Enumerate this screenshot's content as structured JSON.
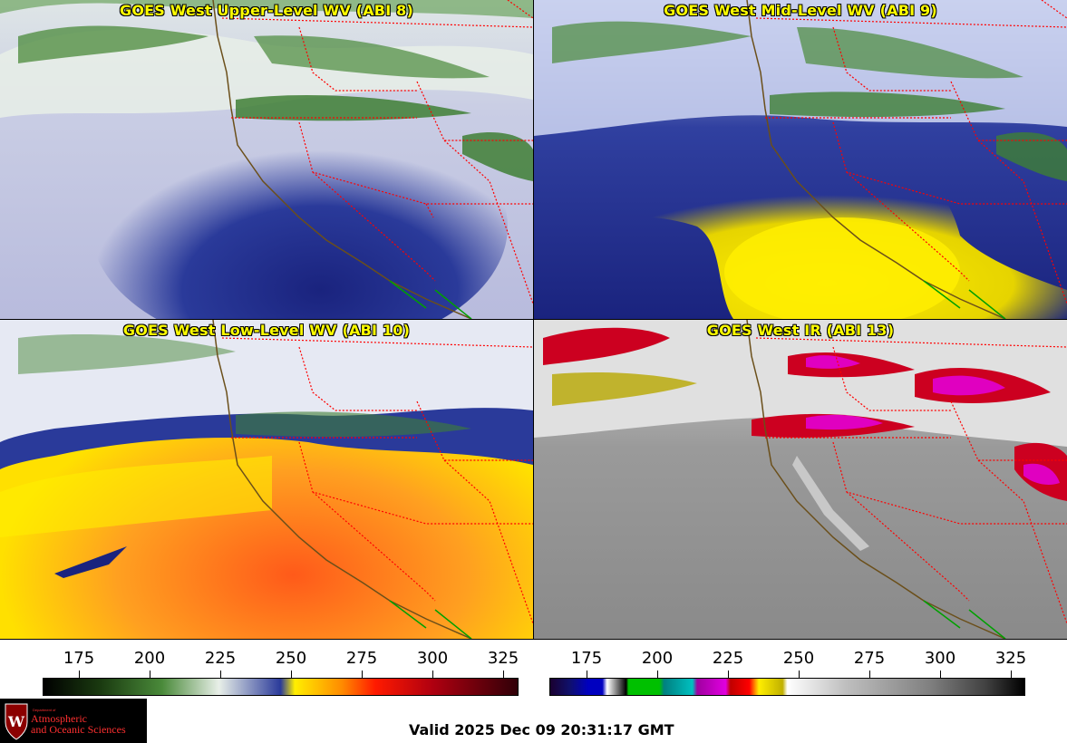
{
  "panels": [
    {
      "title": "GOES West Upper-Level WV (ABI 8)"
    },
    {
      "title": "GOES West Mid-Level WV (ABI 9)"
    },
    {
      "title": "GOES West Low-Level WV (ABI 10)"
    },
    {
      "title": "GOES West IR (ABI 13)"
    }
  ],
  "colorbar_wv": {
    "ticks": [
      "175",
      "200",
      "225",
      "250",
      "275",
      "300",
      "325"
    ]
  },
  "colorbar_ir": {
    "ticks": [
      "175",
      "200",
      "225",
      "250",
      "275",
      "300",
      "325"
    ]
  },
  "logo": {
    "line1": "Department of",
    "line2": "Atmospheric",
    "line3": "and Oceanic Sciences"
  },
  "valid_time": "Valid 2025 Dec 09 20:31:17 GMT",
  "colors": {
    "title_text": "#ffff00",
    "state_border": "#ff0000",
    "coastline": "#6b4f1a",
    "mexico_border": "#00a000"
  }
}
